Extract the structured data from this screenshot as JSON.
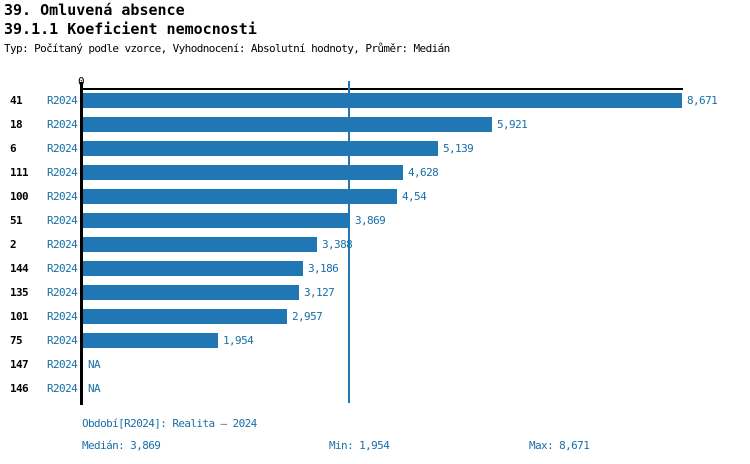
{
  "header": {
    "title": "39. Omluvená absence",
    "subtitle": "39.1.1 Koeficient nemocnosti",
    "meta": "Typ: Počítaný podle vzorce, Vyhodnocení: Absolutní hodnoty, Průměr: Medián"
  },
  "chart_data": {
    "type": "bar",
    "orientation": "horizontal",
    "axis_zero_label": "0",
    "series_label": "R2024",
    "categories": [
      "41",
      "18",
      "6",
      "111",
      "100",
      "51",
      "2",
      "144",
      "135",
      "101",
      "75",
      "147",
      "146"
    ],
    "values": [
      8.671,
      5.921,
      5.139,
      4.628,
      4.54,
      3.869,
      3.388,
      3.186,
      3.127,
      2.957,
      1.954,
      null,
      null
    ],
    "value_labels": [
      "8,671",
      "5,921",
      "5,139",
      "4,628",
      "4,54",
      "3,869",
      "3,388",
      "3,186",
      "3,127",
      "2,957",
      "1,954",
      "NA",
      "NA"
    ],
    "na_label": "NA",
    "xlim": [
      0,
      8.671
    ],
    "median_value": 3.869,
    "grid": false,
    "legend": "none",
    "bar_color": "#2077b4",
    "median_line_color": "#2077b4",
    "label_color": "#1a6fa8"
  },
  "footer": {
    "period": "Období[R2024]: Realita – 2024",
    "median": "Medián: 3,869",
    "min": "Min: 1,954",
    "max": "Max: 8,671"
  }
}
